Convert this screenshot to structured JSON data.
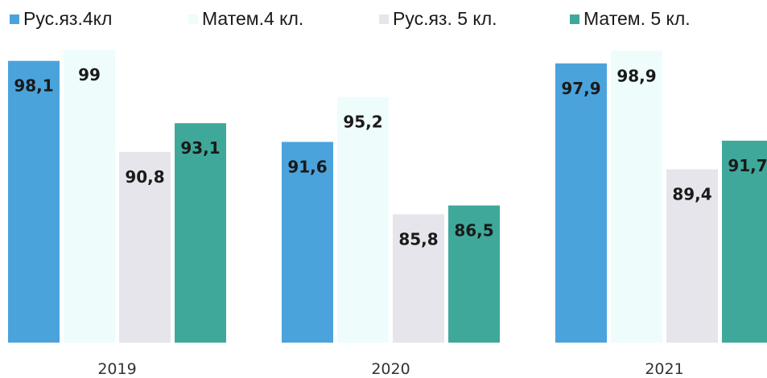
{
  "chart_data": {
    "type": "bar",
    "categories": [
      "2019",
      "2020",
      "2021"
    ],
    "series": [
      {
        "name": "Рус.яз.4кл",
        "color": "#4BA3DB",
        "values": [
          98.1,
          91.6,
          97.9
        ],
        "labels": [
          "98,1",
          "91,6",
          "97,9"
        ]
      },
      {
        "name": "Матем.4 кл.",
        "color": "#EEFCFC",
        "values": [
          99,
          95.2,
          98.9
        ],
        "labels": [
          "99",
          "95,2",
          "98,9"
        ]
      },
      {
        "name": "Рус.яз. 5 кл.",
        "color": "#E6E5EB",
        "values": [
          90.8,
          85.8,
          89.4
        ],
        "labels": [
          "90,8",
          "85,8",
          "89,4"
        ]
      },
      {
        "name": "Матем. 5 кл.",
        "color": "#3FA89A",
        "values": [
          93.1,
          86.5,
          91.7
        ],
        "labels": [
          "93,1",
          "86,5",
          "91,7"
        ]
      }
    ],
    "ylim": [
      75.5,
      100
    ],
    "legend_position": "top",
    "grid": false
  }
}
